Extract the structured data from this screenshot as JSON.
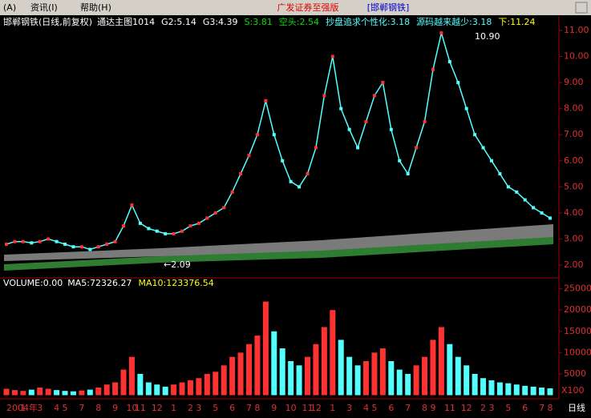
{
  "menu": {
    "items": [
      "(A)",
      "资讯(I)",
      "帮助(H)"
    ],
    "title": "广发证券至强版",
    "stock": "[邯郸钢铁]"
  },
  "chart_data": [
    {
      "type": "line",
      "title": "邯郸钢铁(日线,前复权)",
      "subtitle": "通达主图1014",
      "indicators": [
        {
          "text": "G2:5.14",
          "color": "#ffffff"
        },
        {
          "text": "G3:4.39",
          "color": "#ffffff"
        },
        {
          "text": "S:3.81",
          "color": "#00e000"
        },
        {
          "text": "空头:2.54",
          "color": "#00e000"
        },
        {
          "text": "抄盘追求个性化:3.18",
          "color": "#54ffff"
        },
        {
          "text": "源码越来越少:3.18",
          "color": "#54ffff"
        },
        {
          "text": "下:11.24",
          "color": "#ffff00"
        }
      ],
      "annotations": [
        "10.90",
        "←2.09"
      ],
      "categories": [
        "2004年",
        null,
        "1",
        null,
        "3",
        null,
        "4",
        "5",
        null,
        "7",
        null,
        "8",
        null,
        "9",
        null,
        "10",
        "11",
        null,
        "12",
        null,
        "1",
        null,
        "2",
        "3",
        null,
        "5",
        null,
        "6",
        null,
        "7",
        "8",
        null,
        "9",
        null,
        "10",
        null,
        "11",
        "12",
        null,
        "1",
        null,
        "3",
        null,
        "4",
        "5",
        null,
        "6",
        null,
        "7",
        null,
        "8",
        "9",
        null,
        "11",
        null,
        "12",
        null,
        "2",
        "3",
        null,
        "5",
        null,
        "6",
        null,
        "7",
        "8"
      ],
      "values": [
        2.8,
        2.9,
        2.9,
        2.85,
        2.9,
        3.0,
        2.9,
        2.8,
        2.7,
        2.7,
        2.6,
        2.7,
        2.8,
        2.9,
        3.5,
        4.3,
        3.6,
        3.4,
        3.3,
        3.2,
        3.2,
        3.3,
        3.5,
        3.6,
        3.8,
        4.0,
        4.2,
        4.8,
        5.5,
        6.2,
        7.0,
        8.3,
        7.0,
        6.0,
        5.2,
        5.0,
        5.5,
        6.5,
        8.5,
        10.0,
        8.0,
        7.2,
        6.5,
        7.5,
        8.5,
        9.0,
        7.2,
        6.0,
        5.5,
        6.5,
        7.5,
        9.5,
        10.9,
        9.8,
        9.0,
        8.0,
        7.0,
        6.5,
        6.0,
        5.5,
        5.0,
        4.8,
        4.5,
        4.2,
        4.0,
        3.8
      ],
      "color": "#54ffff",
      "up_color": "#ff3232",
      "down_color": "#54ffff",
      "ylim": [
        1.57,
        11.49
      ],
      "yticks": [
        {
          "value": 2,
          "label": "2.00"
        },
        {
          "value": 3,
          "label": "3.00"
        },
        {
          "value": 4,
          "label": "4.00"
        },
        {
          "value": 5,
          "label": "5.00"
        },
        {
          "value": 6,
          "label": "6.00"
        },
        {
          "value": 7,
          "label": "7.00"
        },
        {
          "value": 8,
          "label": "8.00"
        },
        {
          "value": 9,
          "label": "9.00"
        },
        {
          "value": 10,
          "label": "10.00"
        },
        {
          "value": 11,
          "label": "11.00"
        }
      ]
    },
    {
      "type": "bar",
      "title": "VOLUME:0.00",
      "indicators": [
        {
          "text": "MA5:72326.27",
          "color": "#ffffff"
        },
        {
          "text": "MA10:123376.54",
          "color": "#ffff00"
        }
      ],
      "unit": "X100",
      "values": [
        1500,
        1200,
        1000,
        1300,
        1800,
        1500,
        1200,
        1000,
        900,
        1100,
        1300,
        1800,
        2500,
        3000,
        6000,
        9000,
        5000,
        3000,
        2500,
        2000,
        2500,
        3000,
        3500,
        4000,
        5000,
        5500,
        7000,
        9000,
        10000,
        12000,
        14000,
        22000,
        15000,
        11000,
        8000,
        7000,
        9000,
        12000,
        16000,
        20000,
        13000,
        9000,
        7000,
        8000,
        10000,
        11000,
        8000,
        6000,
        5000,
        7000,
        9000,
        13000,
        16000,
        12000,
        9000,
        7000,
        5000,
        4000,
        3500,
        3000,
        2800,
        2500,
        2200,
        2000,
        1800,
        1600
      ],
      "ylim": [
        0,
        27000
      ],
      "yticks": [
        5000,
        10000,
        15000,
        20000,
        25000
      ]
    }
  ],
  "footer": "日线"
}
